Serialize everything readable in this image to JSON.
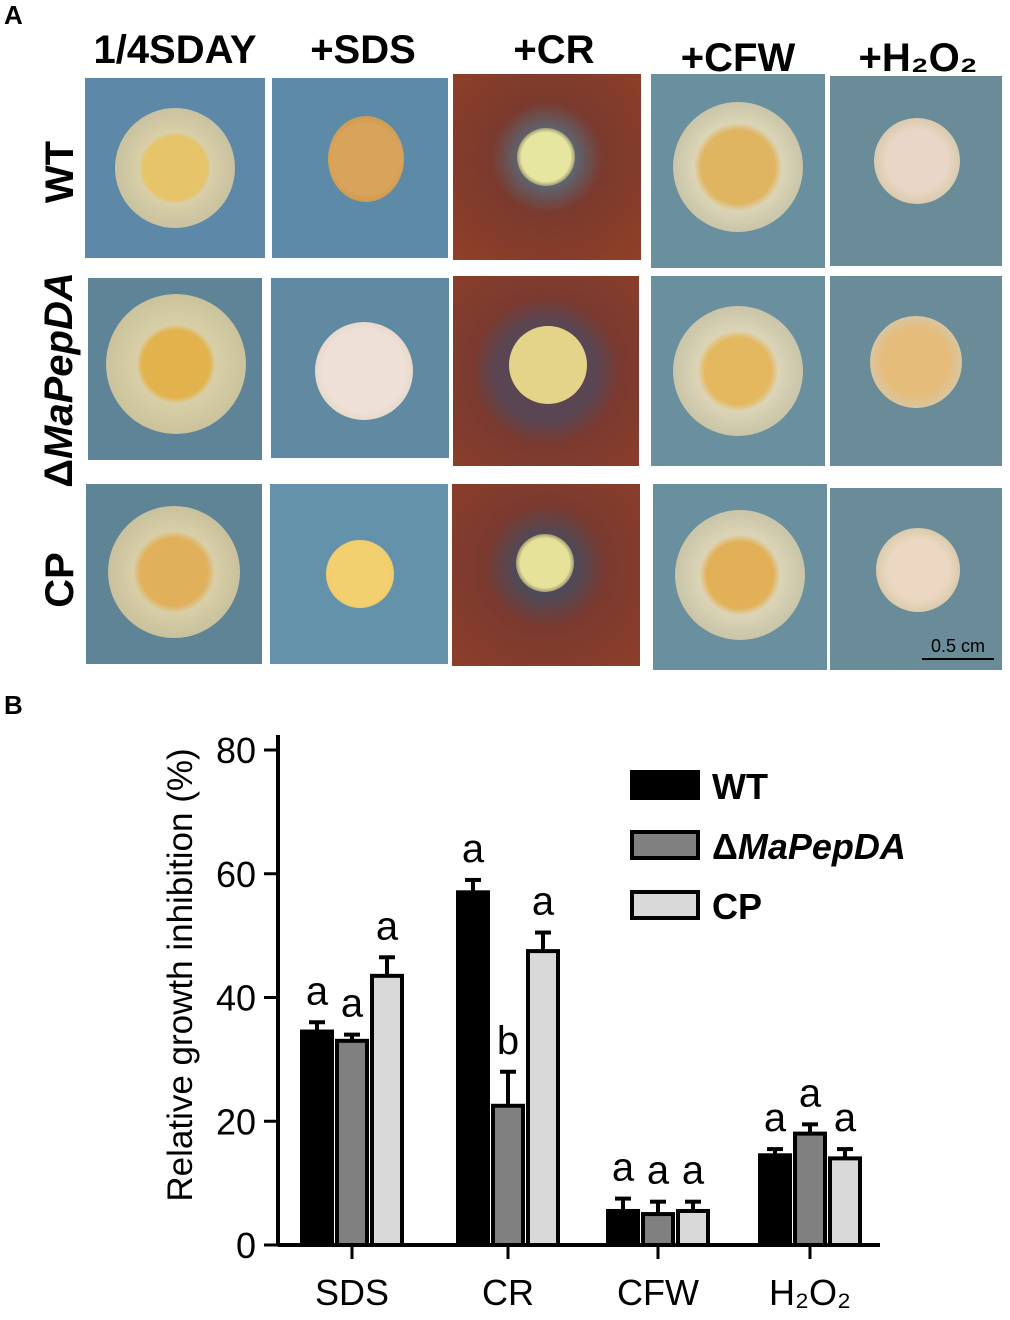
{
  "panel_a": {
    "letter": "A",
    "columns": [
      "1/4SDAY",
      "+SDS",
      "+CR",
      "+CFW",
      "+H₂O₂"
    ],
    "rows": [
      {
        "label": "WT",
        "italic_part": ""
      },
      {
        "label": "Δ",
        "italic_part": "MaPepDA"
      },
      {
        "label": "CP",
        "italic_part": ""
      }
    ],
    "scale_bar": "0.5 cm"
  },
  "panel_b": {
    "letter": "B"
  },
  "chart_data": {
    "type": "bar",
    "ylabel": "Relative growth inhibition (%)",
    "xlabel": "",
    "ylim": [
      0,
      80
    ],
    "yticks": [
      0,
      20,
      40,
      60,
      80
    ],
    "categories": [
      "SDS",
      "CR",
      "CFW",
      "H₂O₂"
    ],
    "series": [
      {
        "name": "WT",
        "legend_italic": "",
        "color": "#000000",
        "values": [
          34.5,
          57,
          5.5,
          14.5
        ],
        "errors": [
          1.5,
          2,
          2,
          1
        ],
        "letters": [
          "a",
          "a",
          "a",
          "a"
        ]
      },
      {
        "name": "Δ",
        "legend_italic": "MaPepDA",
        "color": "#808080",
        "values": [
          33,
          22.5,
          5,
          18
        ],
        "errors": [
          1,
          5.5,
          2,
          1.5
        ],
        "letters": [
          "a",
          "b",
          "a",
          "a"
        ]
      },
      {
        "name": "CP",
        "legend_italic": "",
        "color": "#d9d9d9",
        "values": [
          43.5,
          47.5,
          5.5,
          14
        ],
        "errors": [
          3,
          3,
          1.5,
          1.5
        ],
        "letters": [
          "a",
          "a",
          "a",
          "a"
        ]
      }
    ],
    "legend_position": "top-right",
    "grid": false
  }
}
